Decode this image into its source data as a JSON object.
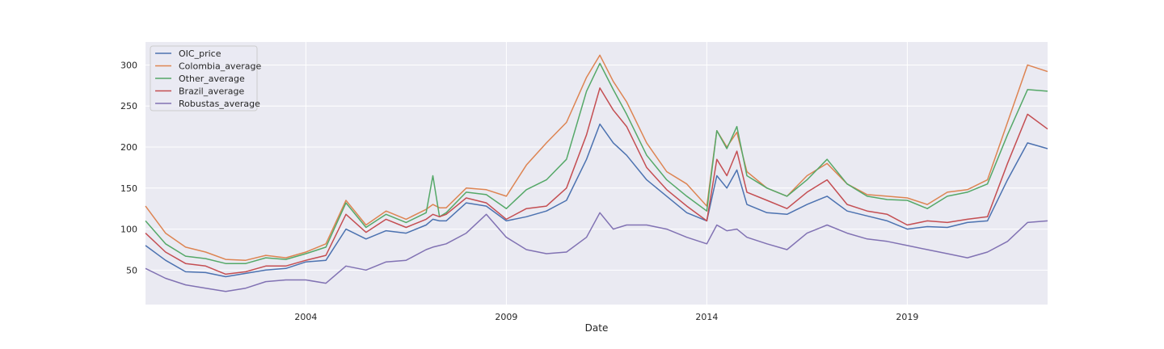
{
  "chart_data": {
    "type": "line",
    "xlabel": "Date",
    "ylabel": "",
    "x_ticks": [
      "2004",
      "2009",
      "2014",
      "2019"
    ],
    "y_ticks": [
      50,
      100,
      150,
      200,
      250,
      300
    ],
    "xlim": [
      "2000-01-01",
      "2022-07-01"
    ],
    "ylim": [
      8,
      328
    ],
    "grid": true,
    "legend_position": "upper-left",
    "dates": [
      "2000-01-01",
      "2000-07-01",
      "2001-01-01",
      "2001-07-01",
      "2002-01-01",
      "2002-07-01",
      "2003-01-01",
      "2003-07-01",
      "2004-01-01",
      "2004-07-01",
      "2005-01-01",
      "2005-07-01",
      "2006-01-01",
      "2006-07-01",
      "2007-01-01",
      "2007-03-01",
      "2007-05-01",
      "2007-07-01",
      "2008-01-01",
      "2008-07-01",
      "2009-01-01",
      "2009-07-01",
      "2010-01-01",
      "2010-07-01",
      "2011-01-01",
      "2011-05-01",
      "2011-09-01",
      "2012-01-01",
      "2012-07-01",
      "2013-01-01",
      "2013-07-01",
      "2014-01-01",
      "2014-04-01",
      "2014-07-01",
      "2014-10-01",
      "2015-01-01",
      "2015-07-01",
      "2016-01-01",
      "2016-07-01",
      "2017-01-01",
      "2017-07-01",
      "2018-01-01",
      "2018-07-01",
      "2019-01-01",
      "2019-07-01",
      "2020-01-01",
      "2020-07-01",
      "2021-01-01",
      "2021-07-01",
      "2022-01-01",
      "2022-07-01"
    ],
    "series": [
      {
        "name": "OIC_price",
        "color": "#4c72b0",
        "values": [
          80,
          62,
          48,
          47,
          42,
          46,
          50,
          52,
          60,
          62,
          100,
          88,
          98,
          95,
          105,
          112,
          110,
          110,
          132,
          128,
          110,
          115,
          122,
          135,
          185,
          228,
          205,
          190,
          160,
          140,
          120,
          110,
          165,
          150,
          172,
          130,
          120,
          118,
          130,
          140,
          122,
          116,
          110,
          100,
          103,
          102,
          108,
          110,
          160,
          205,
          198
        ]
      },
      {
        "name": "Colombia_average",
        "color": "#dd8452",
        "values": [
          128,
          95,
          78,
          72,
          63,
          62,
          68,
          65,
          72,
          82,
          135,
          105,
          122,
          112,
          124,
          130,
          126,
          126,
          150,
          148,
          140,
          178,
          205,
          230,
          285,
          312,
          280,
          255,
          205,
          170,
          155,
          128,
          220,
          200,
          218,
          170,
          150,
          140,
          165,
          180,
          155,
          142,
          140,
          138,
          130,
          145,
          148,
          160,
          230,
          300,
          292
        ]
      },
      {
        "name": "Other_average",
        "color": "#55a868",
        "values": [
          110,
          82,
          67,
          64,
          58,
          58,
          65,
          63,
          70,
          78,
          132,
          102,
          118,
          108,
          120,
          165,
          115,
          120,
          145,
          142,
          125,
          148,
          160,
          185,
          268,
          302,
          270,
          240,
          190,
          160,
          140,
          122,
          220,
          198,
          225,
          165,
          150,
          140,
          160,
          185,
          155,
          140,
          136,
          135,
          125,
          140,
          145,
          155,
          215,
          270,
          268
        ]
      },
      {
        "name": "Brazil_average",
        "color": "#c44e52",
        "values": [
          95,
          72,
          58,
          55,
          45,
          48,
          55,
          55,
          62,
          68,
          118,
          96,
          112,
          102,
          112,
          118,
          115,
          118,
          138,
          132,
          112,
          125,
          128,
          150,
          215,
          272,
          245,
          225,
          175,
          148,
          128,
          110,
          185,
          165,
          195,
          145,
          135,
          125,
          145,
          160,
          130,
          122,
          118,
          105,
          110,
          108,
          112,
          115,
          180,
          240,
          222
        ]
      },
      {
        "name": "Robustas_average",
        "color": "#8172b3",
        "values": [
          52,
          40,
          32,
          28,
          24,
          28,
          36,
          38,
          38,
          34,
          55,
          50,
          60,
          62,
          75,
          78,
          80,
          82,
          95,
          118,
          90,
          75,
          70,
          72,
          90,
          120,
          100,
          105,
          105,
          100,
          90,
          82,
          105,
          98,
          100,
          90,
          82,
          75,
          95,
          105,
          95,
          88,
          85,
          80,
          75,
          70,
          65,
          72,
          85,
          108,
          110
        ]
      }
    ]
  }
}
